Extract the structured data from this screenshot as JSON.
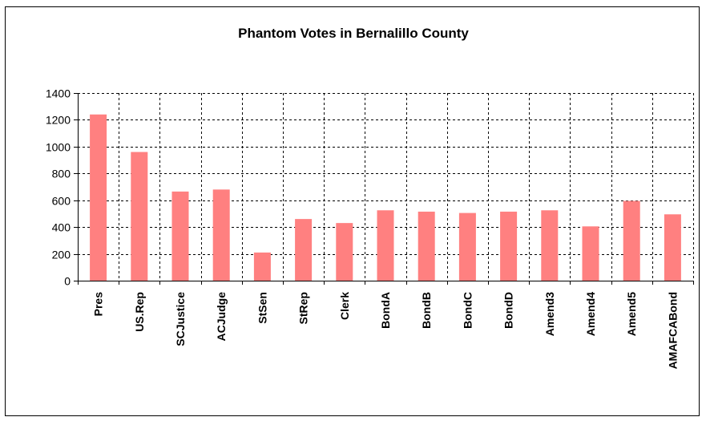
{
  "chart_data": {
    "type": "bar",
    "title": "Phantom Votes in Bernalillo County",
    "xlabel": "",
    "ylabel": "",
    "categories": [
      "Pres",
      "US.Rep",
      "SCJustice",
      "ACJudge",
      "StSen",
      "StRep",
      "Clerk",
      "BondA",
      "BondB",
      "BondC",
      "BondD",
      "Amend3",
      "Amend4",
      "Amend5",
      "AMAFCABond"
    ],
    "values": [
      1240,
      960,
      665,
      680,
      210,
      460,
      430,
      525,
      515,
      505,
      515,
      525,
      405,
      595,
      495
    ],
    "ylim": [
      0,
      1400
    ],
    "yticks": [
      "0",
      "200",
      "400",
      "600",
      "800",
      "1000",
      "1200",
      "1400"
    ],
    "bar_color": "#ff8080",
    "grid": true,
    "grid_style": "dashed",
    "legend": "none"
  }
}
